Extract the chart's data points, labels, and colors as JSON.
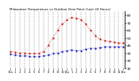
{
  "title": "Milwaukee Temperature vs Outdoor Dew Point (Last 24 Hours)",
  "title_fontsize": 3.0,
  "background_color": "#ffffff",
  "plot_bg_color": "#ffffff",
  "grid_color": "#888888",
  "temp_color": "#cc0000",
  "dew_color": "#0000bb",
  "x_labels": [
    "12a",
    "1",
    "2",
    "3",
    "4",
    "5",
    "6",
    "7",
    "8",
    "9",
    "10",
    "11",
    "12p",
    "1",
    "2",
    "3",
    "4",
    "5",
    "6",
    "7",
    "8",
    "9",
    "10",
    "11",
    "12a"
  ],
  "temp_values": [
    32,
    31,
    30,
    30,
    29,
    29,
    29,
    32,
    40,
    50,
    60,
    68,
    74,
    77,
    76,
    74,
    68,
    60,
    53,
    48,
    46,
    45,
    44,
    43,
    43
  ],
  "dew_values": [
    28,
    27,
    26,
    26,
    25,
    25,
    25,
    26,
    27,
    29,
    30,
    32,
    33,
    34,
    33,
    33,
    35,
    36,
    36,
    37,
    38,
    38,
    38,
    38,
    38
  ],
  "ylim": [
    10,
    85
  ],
  "yticks": [
    10,
    20,
    30,
    40,
    50,
    60,
    70,
    80
  ],
  "ytick_labels": [
    "10",
    "20",
    "30",
    "40",
    "50",
    "60",
    "70",
    "80"
  ],
  "ylabel_fontsize": 3.2,
  "xlabel_fontsize": 2.5,
  "markersize": 1.2,
  "linewidth": 0.5,
  "grid_linewidth": 0.35,
  "grid_linestyle": "--"
}
